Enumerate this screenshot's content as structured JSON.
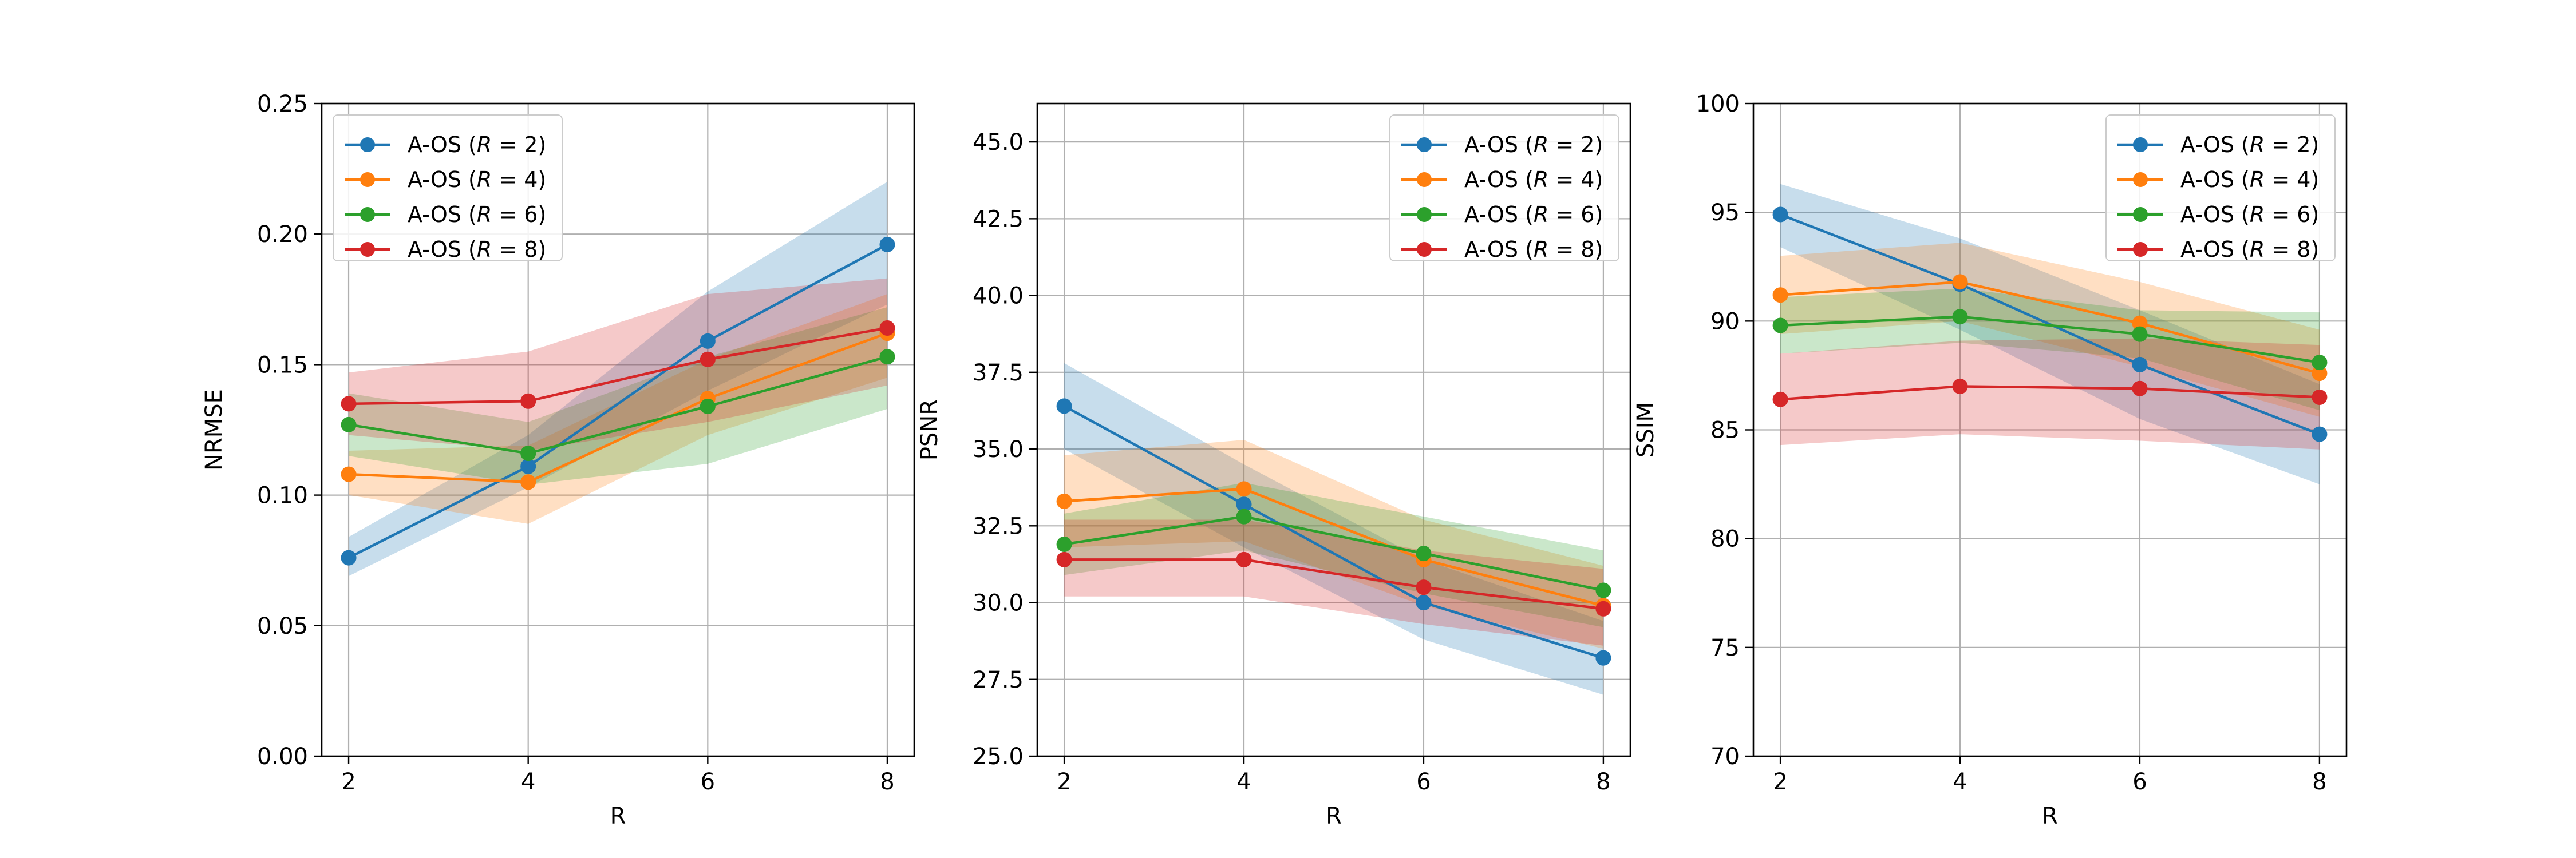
{
  "figure": {
    "background": "#ffffff"
  },
  "chart_data": [
    {
      "type": "line",
      "xlabel": "R",
      "ylabel": "NRMSE",
      "x": [
        2,
        4,
        6,
        8
      ],
      "xticks": [
        "2",
        "4",
        "6",
        "8"
      ],
      "ylim": [
        0,
        0.25
      ],
      "yticks": [
        0,
        0.05,
        0.1,
        0.15,
        0.2,
        0.25
      ],
      "ytick_labels": [
        "0.00",
        "0.05",
        "0.10",
        "0.15",
        "0.20",
        "0.25"
      ],
      "grid": true,
      "legend_position": "top-left",
      "series": [
        {
          "name": "A-OS (R = 2)",
          "legend_prefix": "A-OS (",
          "legend_var": "R",
          "legend_suffix": " = 2)",
          "color": "#1f77b4",
          "values": [
            0.076,
            0.111,
            0.159,
            0.196
          ],
          "lower": [
            0.069,
            0.103,
            0.14,
            0.173
          ],
          "upper": [
            0.084,
            0.123,
            0.178,
            0.22
          ]
        },
        {
          "name": "A-OS (R = 4)",
          "legend_prefix": "A-OS (",
          "legend_var": "R",
          "legend_suffix": " = 4)",
          "color": "#ff7f0e",
          "values": [
            0.108,
            0.105,
            0.137,
            0.162
          ],
          "lower": [
            0.1,
            0.089,
            0.123,
            0.145
          ],
          "upper": [
            0.117,
            0.119,
            0.152,
            0.177
          ]
        },
        {
          "name": "A-OS (R = 6)",
          "legend_prefix": "A-OS (",
          "legend_var": "R",
          "legend_suffix": " = 6)",
          "color": "#2ca02c",
          "values": [
            0.127,
            0.116,
            0.134,
            0.153
          ],
          "lower": [
            0.115,
            0.104,
            0.112,
            0.133
          ],
          "upper": [
            0.139,
            0.128,
            0.153,
            0.172
          ]
        },
        {
          "name": "A-OS (R = 8)",
          "legend_prefix": "A-OS (",
          "legend_var": "R",
          "legend_suffix": " = 8)",
          "color": "#d62728",
          "values": [
            0.135,
            0.136,
            0.152,
            0.164
          ],
          "lower": [
            0.123,
            0.117,
            0.128,
            0.142
          ],
          "upper": [
            0.147,
            0.155,
            0.177,
            0.183
          ]
        }
      ]
    },
    {
      "type": "line",
      "xlabel": "R",
      "ylabel": "PSNR",
      "x": [
        2,
        4,
        6,
        8
      ],
      "xticks": [
        "2",
        "4",
        "6",
        "8"
      ],
      "ylim": [
        25,
        46.25
      ],
      "yticks": [
        25,
        27.5,
        30,
        32.5,
        35,
        37.5,
        40,
        42.5,
        45
      ],
      "ytick_labels": [
        "25.0",
        "27.5",
        "30.0",
        "32.5",
        "35.0",
        "37.5",
        "40.0",
        "42.5",
        "45.0"
      ],
      "grid": true,
      "legend_position": "top-right",
      "series": [
        {
          "name": "A-OS (R = 2)",
          "legend_prefix": "A-OS (",
          "legend_var": "R",
          "legend_suffix": " = 2)",
          "color": "#1f77b4",
          "values": [
            36.4,
            33.2,
            30.0,
            28.2
          ],
          "lower": [
            35.0,
            31.8,
            28.8,
            27.0
          ],
          "upper": [
            37.8,
            34.5,
            31.4,
            29.4
          ]
        },
        {
          "name": "A-OS (R = 4)",
          "legend_prefix": "A-OS (",
          "legend_var": "R",
          "legend_suffix": " = 4)",
          "color": "#ff7f0e",
          "values": [
            33.3,
            33.7,
            31.4,
            29.9
          ],
          "lower": [
            31.8,
            32.0,
            29.9,
            28.5
          ],
          "upper": [
            34.8,
            35.3,
            32.7,
            31.2
          ]
        },
        {
          "name": "A-OS (R = 6)",
          "legend_prefix": "A-OS (",
          "legend_var": "R",
          "legend_suffix": " = 6)",
          "color": "#2ca02c",
          "values": [
            31.9,
            32.8,
            31.6,
            30.4
          ],
          "lower": [
            30.9,
            31.7,
            30.3,
            29.2
          ],
          "upper": [
            32.9,
            33.9,
            32.8,
            31.7
          ]
        },
        {
          "name": "A-OS (R = 8)",
          "legend_prefix": "A-OS (",
          "legend_var": "R",
          "legend_suffix": " = 8)",
          "color": "#d62728",
          "values": [
            31.4,
            31.4,
            30.5,
            29.8
          ],
          "lower": [
            30.2,
            30.2,
            29.3,
            28.6
          ],
          "upper": [
            32.7,
            32.7,
            31.7,
            31.1
          ]
        }
      ]
    },
    {
      "type": "line",
      "xlabel": "R",
      "ylabel": "SSIM",
      "x": [
        2,
        4,
        6,
        8
      ],
      "xticks": [
        "2",
        "4",
        "6",
        "8"
      ],
      "ylim": [
        70,
        100
      ],
      "yticks": [
        70,
        75,
        80,
        85,
        90,
        95,
        100
      ],
      "ytick_labels": [
        "70",
        "75",
        "80",
        "85",
        "90",
        "95",
        "100"
      ],
      "grid": true,
      "legend_position": "top-right",
      "series": [
        {
          "name": "A-OS (R = 2)",
          "legend_prefix": "A-OS (",
          "legend_var": "R",
          "legend_suffix": " = 2)",
          "color": "#1f77b4",
          "values": [
            94.9,
            91.7,
            88.0,
            84.8
          ],
          "lower": [
            93.4,
            89.6,
            85.5,
            82.5
          ],
          "upper": [
            96.3,
            93.8,
            90.5,
            87.1
          ]
        },
        {
          "name": "A-OS (R = 4)",
          "legend_prefix": "A-OS (",
          "legend_var": "R",
          "legend_suffix": " = 4)",
          "color": "#ff7f0e",
          "values": [
            91.2,
            91.8,
            89.9,
            87.6
          ],
          "lower": [
            89.4,
            90.0,
            87.9,
            85.6
          ],
          "upper": [
            93.0,
            93.6,
            91.8,
            89.6
          ]
        },
        {
          "name": "A-OS (R = 6)",
          "legend_prefix": "A-OS (",
          "legend_var": "R",
          "legend_suffix": " = 6)",
          "color": "#2ca02c",
          "values": [
            89.8,
            90.2,
            89.4,
            88.1
          ],
          "lower": [
            88.5,
            89.0,
            88.3,
            85.9
          ],
          "upper": [
            91.1,
            91.5,
            90.5,
            90.4
          ]
        },
        {
          "name": "A-OS (R = 8)",
          "legend_prefix": "A-OS (",
          "legend_var": "R",
          "legend_suffix": " = 8)",
          "color": "#d62728",
          "values": [
            86.4,
            87.0,
            86.9,
            86.5
          ],
          "lower": [
            84.3,
            84.8,
            84.5,
            84.1
          ],
          "upper": [
            88.5,
            89.1,
            89.2,
            88.9
          ]
        }
      ]
    }
  ]
}
